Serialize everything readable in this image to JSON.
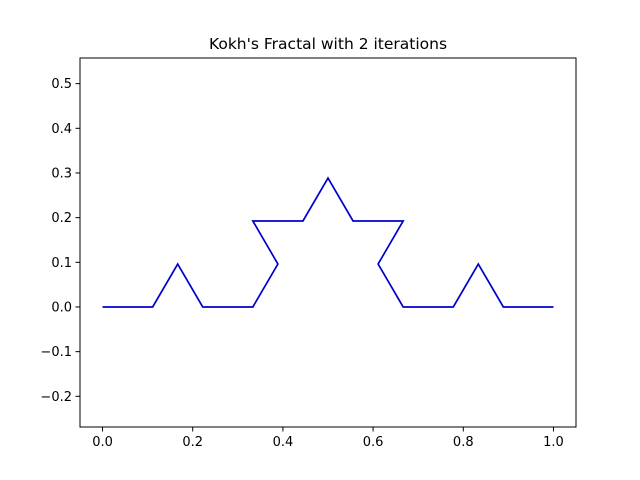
{
  "chart_data": {
    "type": "line",
    "title": "Kokh's Fractal with 2 iterations",
    "xlabel": "",
    "ylabel": "",
    "xlim": [
      -0.05,
      1.05
    ],
    "ylim": [
      -0.2687,
      0.5574
    ],
    "xticks": [
      {
        "value": 0.0,
        "label": "0.0"
      },
      {
        "value": 0.2,
        "label": "0.2"
      },
      {
        "value": 0.4,
        "label": "0.4"
      },
      {
        "value": 0.6,
        "label": "0.6"
      },
      {
        "value": 0.8,
        "label": "0.8"
      },
      {
        "value": 1.0,
        "label": "1.0"
      }
    ],
    "yticks": [
      {
        "value": -0.2,
        "label": "−0.2"
      },
      {
        "value": -0.1,
        "label": "−0.1"
      },
      {
        "value": 0.0,
        "label": "0.0"
      },
      {
        "value": 0.1,
        "label": "0.1"
      },
      {
        "value": 0.2,
        "label": "0.2"
      },
      {
        "value": 0.3,
        "label": "0.3"
      },
      {
        "value": 0.4,
        "label": "0.4"
      },
      {
        "value": 0.5,
        "label": "0.5"
      }
    ],
    "grid": false,
    "legend": "none",
    "series": [
      {
        "color": "#0000cc",
        "x": [
          0,
          0.1111,
          0.1667,
          0.2222,
          0.3333,
          0.3889,
          0.3333,
          0.4444,
          0.5,
          0.5556,
          0.6667,
          0.6111,
          0.6667,
          0.7778,
          0.8333,
          0.8889,
          1.0
        ],
        "y": [
          0,
          0,
          0.0962,
          0,
          0,
          0.0962,
          0.1925,
          0.1925,
          0.2887,
          0.1925,
          0.1925,
          0.0962,
          0,
          0,
          0.0962,
          0,
          0
        ]
      }
    ]
  }
}
